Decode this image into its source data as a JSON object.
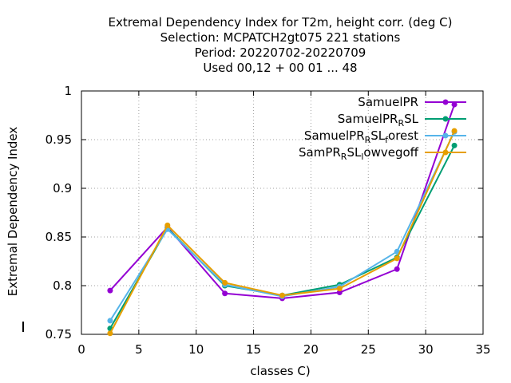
{
  "chart_data": {
    "type": "line",
    "title_lines": [
      "Extremal Dependency Index  for T2m, height corr. (deg C)",
      "Selection: MCPATCH2gt075    221 stations",
      "Period: 20220702-20220709",
      "Used  00,12  + 00 01 ... 48"
    ],
    "xlabel": "classes C)",
    "ylabel": "Extremal Dependency Index",
    "xlim": [
      0,
      35
    ],
    "ylim": [
      0.75,
      1
    ],
    "x_ticks": [
      0,
      5,
      10,
      15,
      20,
      25,
      30,
      35
    ],
    "x_tick_labels": [
      "0",
      "5",
      "10",
      "15",
      "20",
      "25",
      "30",
      "35"
    ],
    "y_ticks": [
      0.75,
      0.8,
      0.85,
      0.9,
      0.95,
      1
    ],
    "y_tick_labels": [
      "0.75",
      "0.8",
      "0.85",
      "0.9",
      "0.95",
      "1"
    ],
    "grid": true,
    "legend_position": "top-right",
    "x": [
      2.5,
      7.5,
      12.5,
      17.5,
      22.5,
      27.5,
      32.5
    ],
    "series": [
      {
        "name": "SamuelPR",
        "name_parts": [
          {
            "t": "SamuelPR",
            "sub": false
          }
        ],
        "color": "#9400d3",
        "values": [
          0.795,
          0.86,
          0.792,
          0.787,
          0.793,
          0.817,
          0.986
        ]
      },
      {
        "name": "SamuelPR_RSL",
        "name_parts": [
          {
            "t": "SamuelPR",
            "sub": false
          },
          {
            "t": "R",
            "sub": true
          },
          {
            "t": "SL",
            "sub": false
          }
        ],
        "color": "#009e73",
        "values": [
          0.756,
          0.859,
          0.8,
          0.79,
          0.801,
          0.829,
          0.944
        ]
      },
      {
        "name": "SamuelPR_RSL_forest",
        "name_parts": [
          {
            "t": "SamuelPR",
            "sub": false
          },
          {
            "t": "R",
            "sub": true
          },
          {
            "t": "SL",
            "sub": false
          },
          {
            "t": "f",
            "sub": true
          },
          {
            "t": "orest",
            "sub": false
          }
        ],
        "color": "#56b4e9",
        "values": [
          0.764,
          0.858,
          0.801,
          0.789,
          0.799,
          0.835,
          0.958
        ]
      },
      {
        "name": "SamPR_RSL_lowvegoff",
        "name_parts": [
          {
            "t": "SamPR",
            "sub": false
          },
          {
            "t": "R",
            "sub": true
          },
          {
            "t": "SL",
            "sub": false
          },
          {
            "t": "l",
            "sub": true
          },
          {
            "t": "owvegoff",
            "sub": false
          }
        ],
        "color": "#e69f00",
        "values": [
          0.751,
          0.862,
          0.803,
          0.79,
          0.797,
          0.828,
          0.959
        ]
      }
    ]
  }
}
